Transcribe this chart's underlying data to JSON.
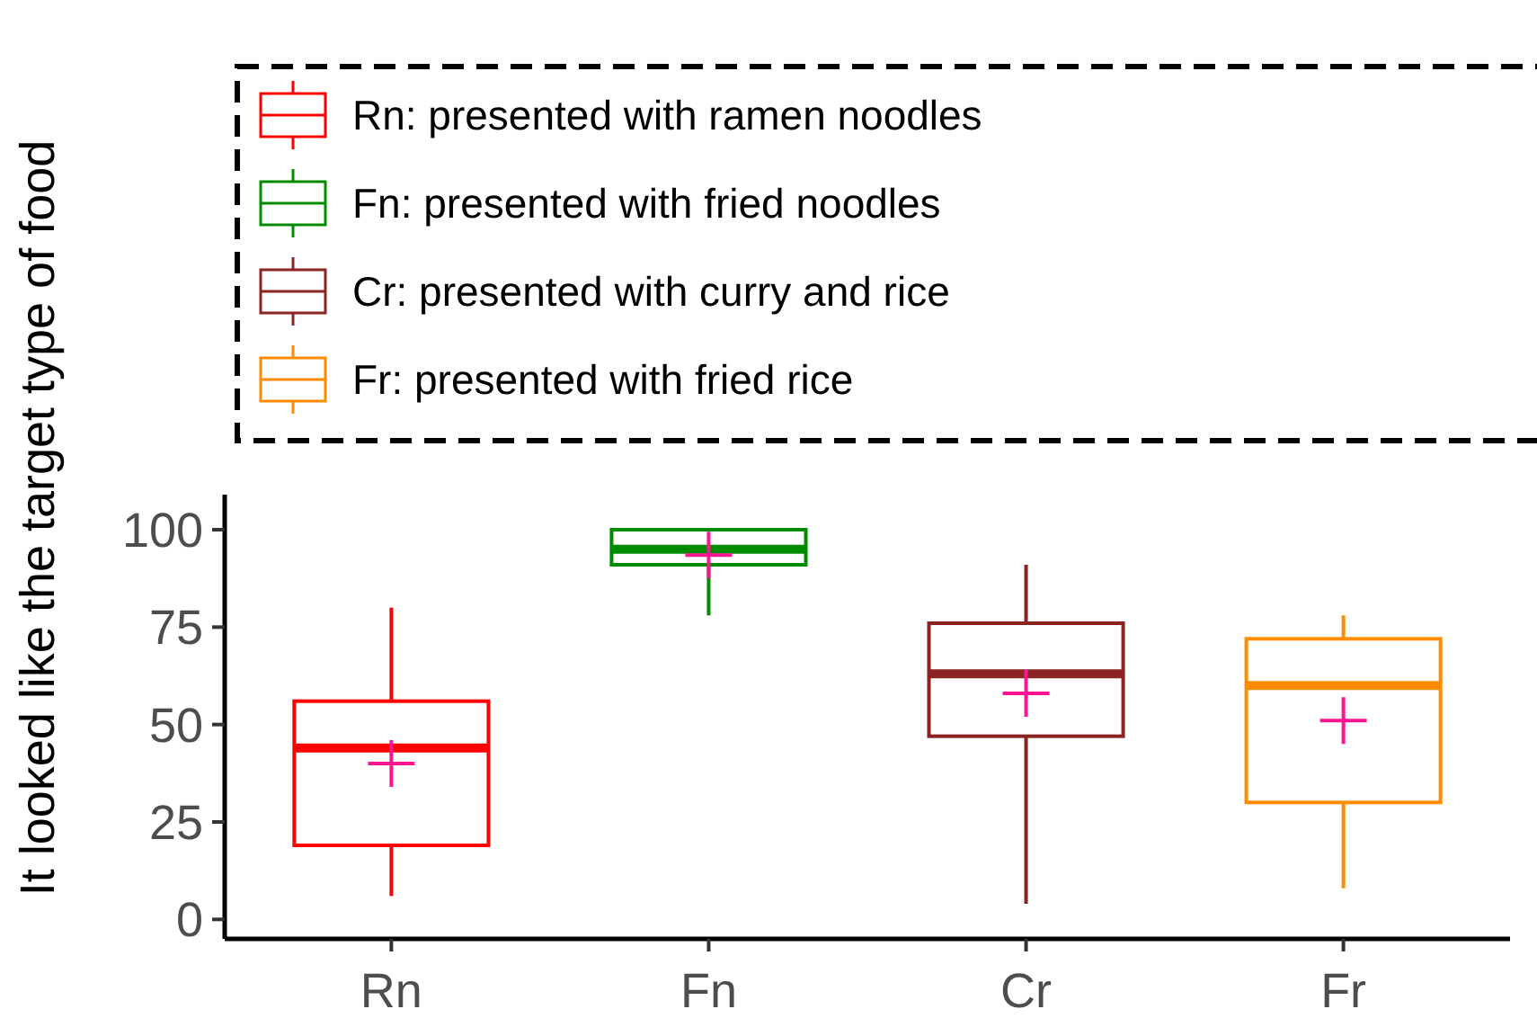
{
  "chart_data": {
    "type": "box",
    "ylabel": "It looked like the target type of food",
    "categories": [
      "Rn",
      "Fn",
      "Cr",
      "Fr"
    ],
    "ylim": [
      -5,
      109
    ],
    "yticks": [
      0,
      25,
      50,
      75,
      100
    ],
    "legend": "top",
    "grid": false,
    "series": [
      {
        "name": "Rn: presented with ramen noodles",
        "color": "#ff0000",
        "boxes": [
          {
            "low": 6,
            "q1": 19,
            "median": 44,
            "q3": 56,
            "high": 80,
            "mean": 40
          },
          null,
          null,
          null
        ]
      },
      {
        "name": "Fn: presented with fried noodles",
        "color": "#008b00",
        "boxes": [
          null,
          {
            "low": 78,
            "q1": 91,
            "median": 95,
            "q3": 100,
            "high": 100,
            "mean": 93.5
          },
          null,
          null
        ]
      },
      {
        "name": "Cr: presented with curry and rice",
        "color": "#8b2323",
        "boxes": [
          null,
          null,
          {
            "low": 4,
            "q1": 47,
            "median": 63,
            "q3": 76,
            "high": 91,
            "mean": 58
          },
          null
        ]
      },
      {
        "name": "Fr: presented with fried rice",
        "color": "#ff8c00",
        "boxes": [
          null,
          null,
          null,
          {
            "low": 8,
            "q1": 30,
            "median": 60,
            "q3": 72,
            "high": 78,
            "mean": 51
          }
        ]
      }
    ]
  }
}
